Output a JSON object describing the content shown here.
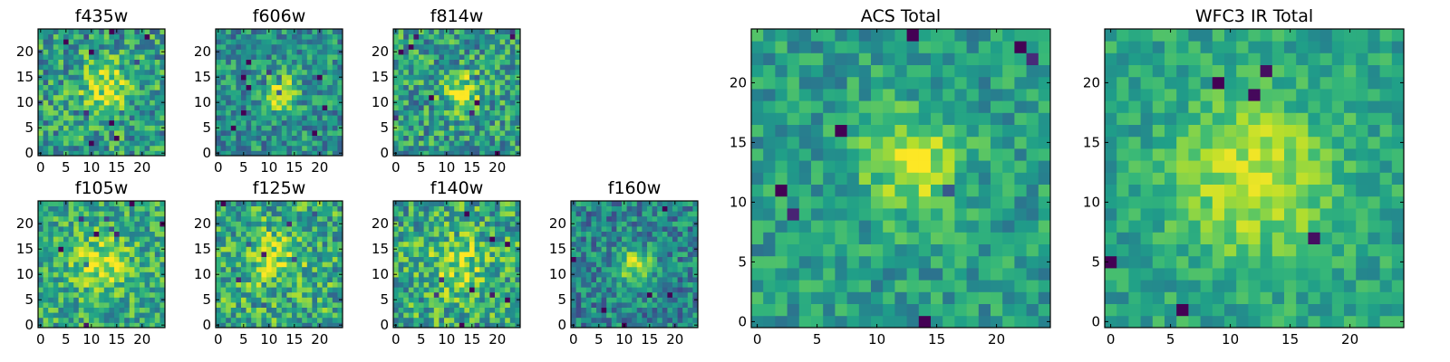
{
  "chart_data": [
    {
      "id": "f435w",
      "type": "heatmap",
      "title": "f435w",
      "nx": 25,
      "ny": 25,
      "xlim": [
        0,
        25
      ],
      "ylim": [
        0,
        25
      ],
      "xticks": [
        0,
        5,
        10,
        15,
        20
      ],
      "yticks": [
        0,
        5,
        10,
        15,
        20
      ],
      "colormap": "viridis",
      "peak": [
        13,
        13
      ],
      "peak_sigma": 3.5,
      "peak_amp": 0.35,
      "noise": 0.35,
      "base": 0.55,
      "seed": 11
    },
    {
      "id": "f606w",
      "type": "heatmap",
      "title": "f606w",
      "nx": 25,
      "ny": 25,
      "xlim": [
        0,
        25
      ],
      "ylim": [
        0,
        25
      ],
      "xticks": [
        0,
        5,
        10,
        15,
        20
      ],
      "yticks": [
        0,
        5,
        10,
        15,
        20
      ],
      "colormap": "viridis",
      "peak": [
        12,
        12
      ],
      "peak_sigma": 2.5,
      "peak_amp": 0.45,
      "noise": 0.3,
      "base": 0.5,
      "seed": 23
    },
    {
      "id": "f814w",
      "type": "heatmap",
      "title": "f814w",
      "nx": 25,
      "ny": 25,
      "xlim": [
        0,
        25
      ],
      "ylim": [
        0,
        25
      ],
      "xticks": [
        0,
        5,
        10,
        15,
        20
      ],
      "yticks": [
        0,
        5,
        10,
        15,
        20
      ],
      "colormap": "viridis",
      "peak": [
        13,
        12
      ],
      "peak_sigma": 2.5,
      "peak_amp": 0.4,
      "noise": 0.35,
      "base": 0.55,
      "seed": 37
    },
    {
      "id": "f105w",
      "type": "heatmap",
      "title": "f105w",
      "nx": 25,
      "ny": 25,
      "xlim": [
        0,
        25
      ],
      "ylim": [
        0,
        25
      ],
      "xticks": [
        0,
        5,
        10,
        15,
        20
      ],
      "yticks": [
        0,
        5,
        10,
        15,
        20
      ],
      "colormap": "viridis",
      "peak": [
        12,
        12
      ],
      "peak_sigma": 4,
      "peak_amp": 0.3,
      "noise": 0.3,
      "base": 0.6,
      "seed": 41
    },
    {
      "id": "f125w",
      "type": "heatmap",
      "title": "f125w",
      "nx": 25,
      "ny": 25,
      "xlim": [
        0,
        25
      ],
      "ylim": [
        0,
        25
      ],
      "xticks": [
        0,
        5,
        10,
        15,
        20
      ],
      "yticks": [
        0,
        5,
        10,
        15,
        20
      ],
      "colormap": "viridis",
      "peak": [
        11,
        13
      ],
      "peak_sigma": 4,
      "peak_amp": 0.25,
      "noise": 0.35,
      "base": 0.6,
      "seed": 53
    },
    {
      "id": "f140w",
      "type": "heatmap",
      "title": "f140w",
      "nx": 25,
      "ny": 25,
      "xlim": [
        0,
        25
      ],
      "ylim": [
        0,
        25
      ],
      "xticks": [
        0,
        5,
        10,
        15,
        20
      ],
      "yticks": [
        0,
        5,
        10,
        15,
        20
      ],
      "colormap": "viridis",
      "peak": [
        12,
        12
      ],
      "peak_sigma": 4,
      "peak_amp": 0.25,
      "noise": 0.35,
      "base": 0.6,
      "seed": 67
    },
    {
      "id": "f160w",
      "type": "heatmap",
      "title": "f160w",
      "nx": 25,
      "ny": 25,
      "xlim": [
        0,
        25
      ],
      "ylim": [
        0,
        25
      ],
      "xticks": [
        0,
        5,
        10,
        15,
        20
      ],
      "yticks": [
        0,
        5,
        10,
        15,
        20
      ],
      "colormap": "viridis",
      "peak": [
        12,
        12
      ],
      "peak_sigma": 2.5,
      "peak_amp": 0.45,
      "noise": 0.3,
      "base": 0.45,
      "seed": 79
    },
    {
      "id": "acs-total",
      "type": "heatmap",
      "title": "ACS Total",
      "nx": 25,
      "ny": 25,
      "xlim": [
        0,
        25
      ],
      "ylim": [
        0,
        25
      ],
      "xticks": [
        0,
        5,
        10,
        15,
        20
      ],
      "yticks": [
        0,
        5,
        10,
        15,
        20
      ],
      "colormap": "viridis",
      "peak": [
        13,
        13
      ],
      "peak_sigma": 3,
      "peak_amp": 0.35,
      "noise": 0.22,
      "base": 0.55,
      "seed": 97
    },
    {
      "id": "wfc3-ir-total",
      "type": "heatmap",
      "title": "WFC3 IR Total",
      "nx": 25,
      "ny": 25,
      "xlim": [
        0,
        25
      ],
      "ylim": [
        0,
        25
      ],
      "xticks": [
        0,
        5,
        10,
        15,
        20
      ],
      "yticks": [
        0,
        5,
        10,
        15,
        20
      ],
      "colormap": "viridis",
      "peak": [
        12,
        12
      ],
      "peak_sigma": 4.5,
      "peak_amp": 0.35,
      "noise": 0.18,
      "base": 0.58,
      "seed": 113
    }
  ]
}
